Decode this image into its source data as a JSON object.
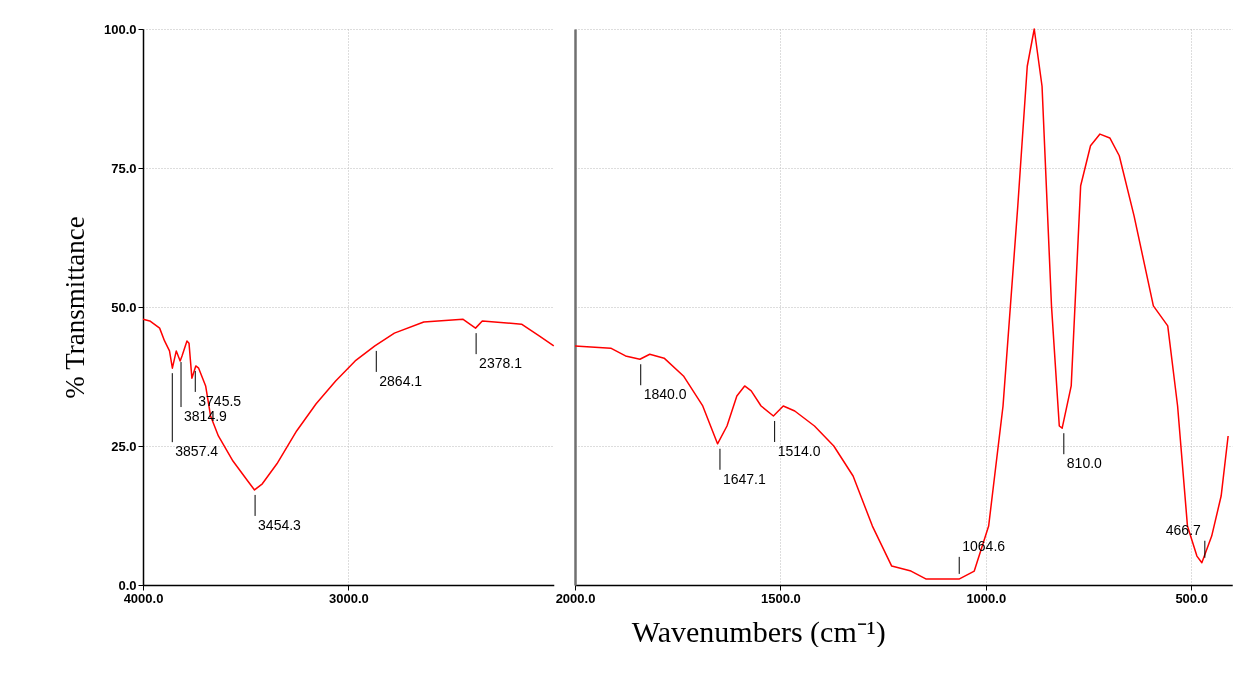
{
  "chart_data": [
    {
      "type": "line",
      "ylabel": "% Transmittance",
      "x": [
        4000,
        3967,
        3919,
        3895,
        3871,
        3857,
        3838,
        3819,
        3810,
        3786,
        3776,
        3762,
        3743,
        3729,
        3695,
        3671,
        3633,
        3562,
        3490,
        3457,
        3419,
        3348,
        3252,
        3157,
        3062,
        2967,
        2871,
        2776,
        2633,
        2443,
        2381,
        2348,
        2157,
        2071,
        2000
      ],
      "series": [
        {
          "color": "#ff0000",
          "values": [
            47.8,
            47.5,
            46.2,
            43.9,
            42.1,
            39.0,
            42.1,
            40.3,
            41.2,
            43.9,
            43.5,
            37.2,
            39.4,
            39.0,
            35.8,
            30.4,
            26.8,
            22.3,
            18.7,
            17.1,
            18.2,
            21.8,
            27.7,
            32.6,
            36.7,
            40.3,
            43.0,
            45.3,
            47.3,
            47.8,
            46.2,
            47.5,
            46.9,
            44.8,
            43.0
          ]
        }
      ],
      "xlim": [
        4000,
        2000
      ],
      "xticks": [
        {
          "value": 4000,
          "label": "4000.0"
        },
        {
          "value": 3000,
          "label": "3000.0"
        }
      ],
      "ylim": [
        0,
        100
      ],
      "yticks": [
        {
          "value": 0,
          "label": "0.0"
        },
        {
          "value": 25,
          "label": "25.0"
        },
        {
          "value": 50,
          "label": "50.0"
        },
        {
          "value": 75,
          "label": "75.0"
        },
        {
          "value": 100,
          "label": "100.0"
        }
      ],
      "grid": true,
      "annotations": [
        {
          "text": "3857.4",
          "x": 3857.4,
          "y": 39
        },
        {
          "text": "3814.9",
          "x": 3814.9,
          "y": 41
        },
        {
          "text": "3745.5",
          "x": 3745.5,
          "y": 39.4
        },
        {
          "text": "3454.3",
          "x": 3454.3,
          "y": 17.1
        },
        {
          "text": "2864.1",
          "x": 2864.1,
          "y": 43
        },
        {
          "text": "2378.1",
          "x": 2378.1,
          "y": 46.2
        }
      ]
    },
    {
      "type": "line",
      "xlabel": "Wavenumbers (cm⁻¹)",
      "x": [
        2000,
        1913,
        1877,
        1842,
        1818,
        1783,
        1736,
        1689,
        1653,
        1630,
        1606,
        1587,
        1571,
        1547,
        1517,
        1493,
        1465,
        1417,
        1370,
        1323,
        1276,
        1229,
        1182,
        1146,
        1064,
        1028,
        993,
        958,
        922,
        899,
        882,
        863,
        840,
        821,
        814,
        792,
        769,
        745,
        722,
        698,
        675,
        639,
        592,
        557,
        533,
        509,
        486,
        474,
        450,
        427,
        410
      ],
      "series": [
        {
          "color": "#ff0000",
          "values": [
            43.0,
            42.6,
            41.2,
            40.6,
            41.5,
            40.8,
            37.6,
            32.2,
            25.4,
            28.6,
            34.0,
            35.8,
            34.9,
            32.2,
            30.4,
            32.2,
            31.3,
            28.6,
            25.0,
            19.6,
            10.6,
            3.4,
            2.5,
            1.1,
            1.1,
            2.5,
            10.6,
            32.2,
            68.2,
            93.3,
            100,
            89.7,
            50.2,
            28.6,
            28.2,
            35.8,
            71.8,
            79.0,
            81.1,
            80.4,
            77.2,
            66.4,
            50.2,
            46.6,
            32.2,
            10.6,
            5.2,
            4.0,
            8.8,
            16.0,
            26.8
          ]
        }
      ],
      "xlim": [
        2000,
        400
      ],
      "xticks": [
        {
          "value": 2000,
          "label": "2000.0"
        },
        {
          "value": 1500,
          "label": "1500.0"
        },
        {
          "value": 1000,
          "label": "1000.0"
        },
        {
          "value": 500,
          "label": "500.0"
        }
      ],
      "ylim": [
        0,
        100
      ],
      "tick_labels": "x",
      "grid": true,
      "annotations": [
        {
          "text": "1840.0",
          "x": 1840.0,
          "y": 40.6
        },
        {
          "text": "1647.1",
          "x": 1647.1,
          "y": 25.4
        },
        {
          "text": "1514.0",
          "x": 1514.0,
          "y": 30.4
        },
        {
          "text": "1064.6",
          "x": 1064.6,
          "y": 1.1
        },
        {
          "text": "810.0",
          "x": 810.0,
          "y": 28.2
        },
        {
          "text": "466.7",
          "x": 466.7,
          "y": 4.0
        }
      ]
    }
  ]
}
